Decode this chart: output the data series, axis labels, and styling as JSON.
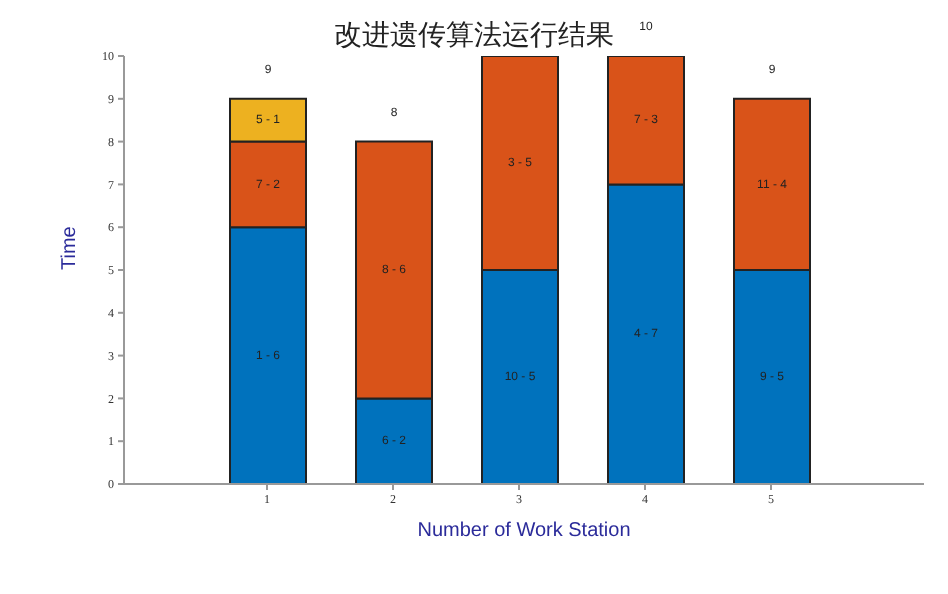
{
  "chart_data": {
    "type": "bar",
    "title": "改进遗传算法运行结果",
    "xlabel": "Number of Work Station",
    "ylabel": "Time",
    "categories": [
      "1",
      "2",
      "3",
      "4",
      "5"
    ],
    "stacked": true,
    "series": [
      {
        "color": "#0072bd",
        "values": [
          6,
          2,
          5,
          7,
          5
        ]
      },
      {
        "color": "#d95319",
        "values": [
          2,
          6,
          5,
          3,
          4
        ]
      },
      {
        "color": "#edb120",
        "values": [
          1,
          null,
          null,
          null,
          null
        ]
      }
    ],
    "annotations": [
      "1 - 6",
      "7 - 2",
      "5 - 1",
      "6 - 2",
      "8 - 6",
      "10 - 5",
      "3 - 5",
      "4 - 7",
      "7 - 3",
      "9 - 5",
      "11 - 4"
    ],
    "totals": [
      "9",
      "8",
      null,
      "10",
      "9"
    ],
    "ylim": [
      0,
      10
    ],
    "yticks": [
      0,
      1,
      2,
      3,
      4,
      5,
      6,
      7,
      8,
      9,
      10
    ],
    "grid": false,
    "legend": false
  }
}
